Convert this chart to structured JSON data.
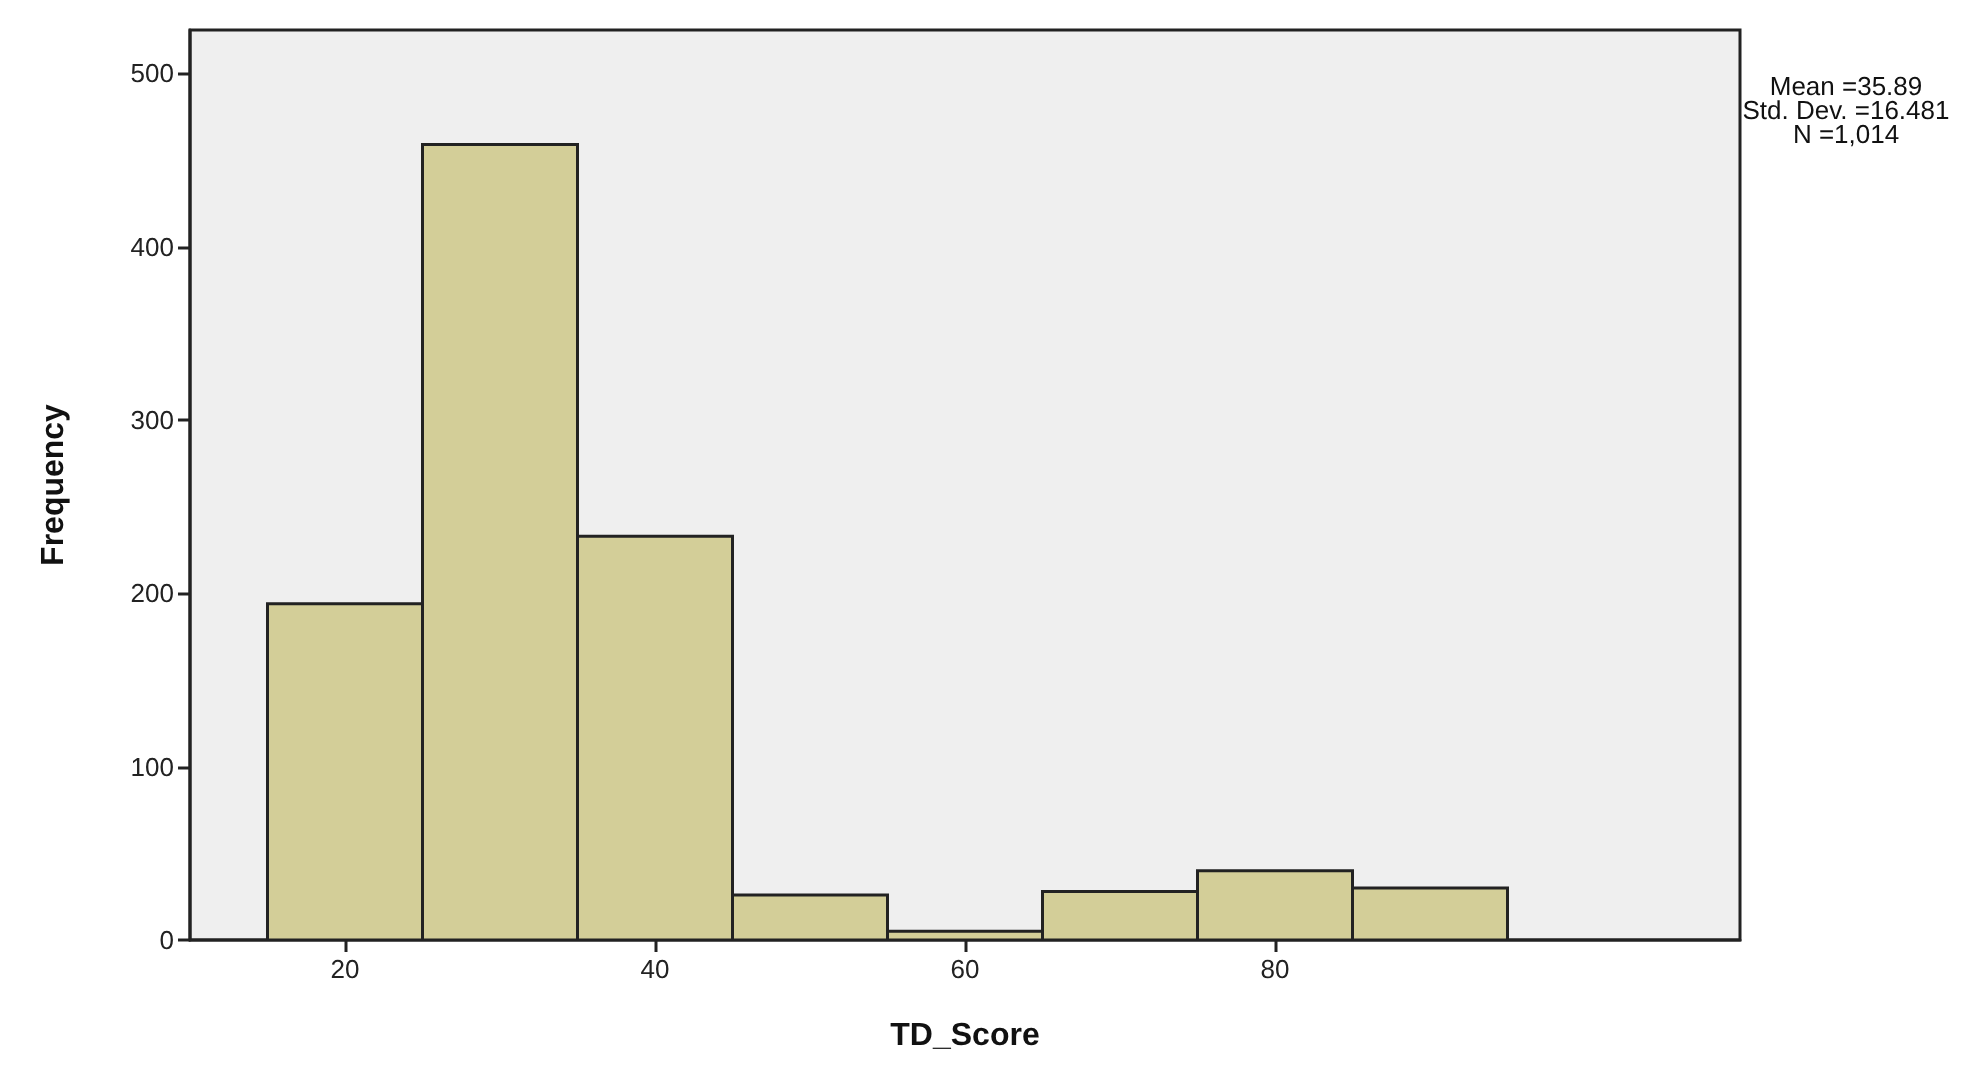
{
  "chart_data": {
    "type": "histogram",
    "xlabel": "TD_Score",
    "ylabel": "Frequency",
    "bins": [
      15,
      25,
      35,
      45,
      55,
      65,
      75,
      85,
      95
    ],
    "values": [
      194,
      459,
      233,
      26,
      5,
      28,
      40,
      30
    ],
    "color": "#d3ce98",
    "xlim": [
      10,
      110
    ],
    "xticks": [
      20,
      40,
      60,
      80
    ],
    "ylim": [
      0,
      525
    ],
    "yticks": [
      0,
      100,
      200,
      300,
      400,
      500
    ],
    "grid": false,
    "annotations": [
      "Mean =35.89",
      "Std. Dev. =16.481",
      "N =1,014"
    ]
  }
}
